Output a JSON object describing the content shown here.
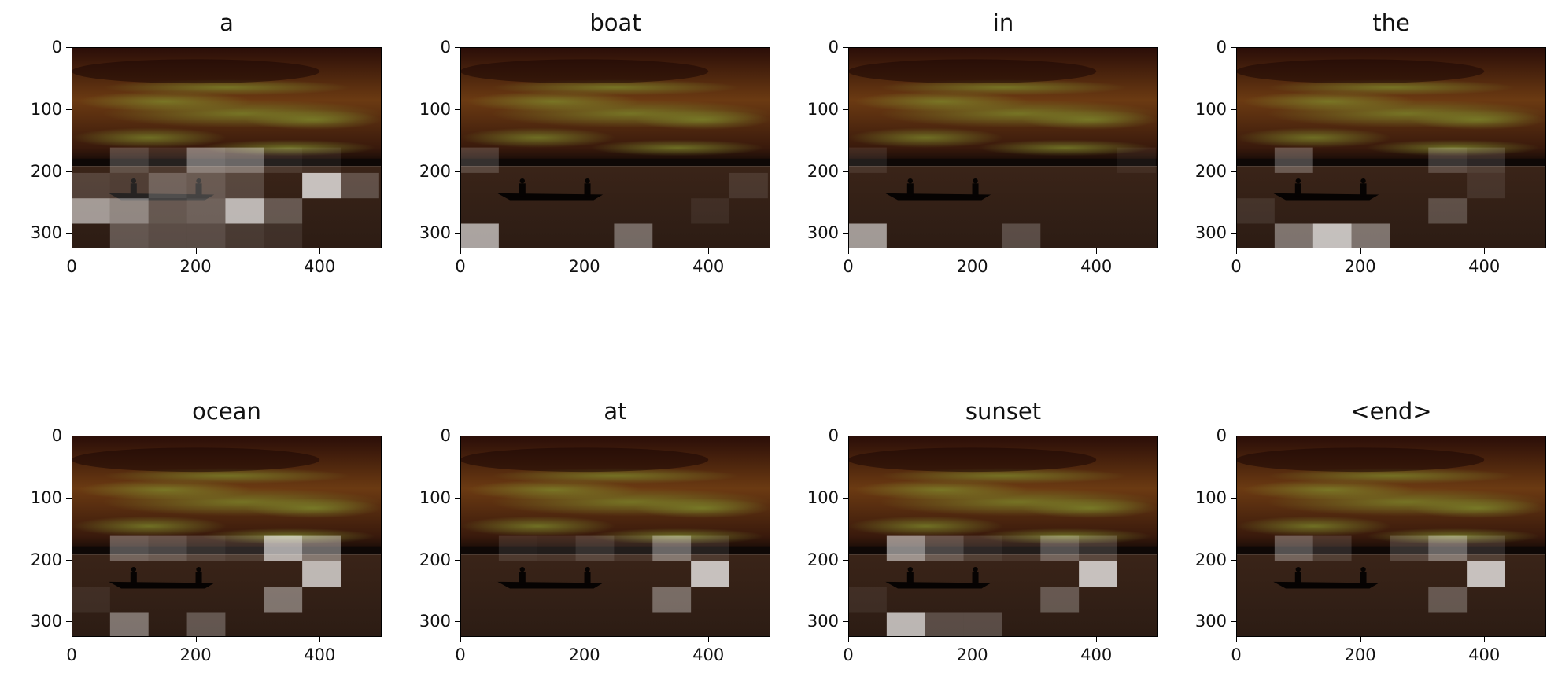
{
  "figure": {
    "colors": {
      "sky_top": "#2a0d08",
      "sky_glow": "#6b3a12",
      "cloud_green": "#7e8a2c",
      "water": "#2c1c14",
      "horizon": "#0e0806",
      "attention": "#ffffff"
    }
  },
  "chart_data": [
    {
      "type": "heatmap",
      "title": "a",
      "image_extent": {
        "x": [
          0,
          500
        ],
        "y": [
          325,
          0
        ]
      },
      "xticks": [
        "0",
        "200",
        "400"
      ],
      "yticks": [
        "0",
        "100",
        "200",
        "300"
      ],
      "attention_cells": [
        {
          "x": [
            62,
            124
          ],
          "y": [
            162,
            203
          ],
          "w": 0.25
        },
        {
          "x": [
            124,
            186
          ],
          "y": [
            162,
            203
          ],
          "w": 0.12
        },
        {
          "x": [
            186,
            248
          ],
          "y": [
            162,
            203
          ],
          "w": 0.5
        },
        {
          "x": [
            248,
            310
          ],
          "y": [
            162,
            203
          ],
          "w": 0.45
        },
        {
          "x": [
            310,
            372
          ],
          "y": [
            162,
            203
          ],
          "w": 0.12
        },
        {
          "x": [
            372,
            434
          ],
          "y": [
            162,
            203
          ],
          "w": 0.08
        },
        {
          "x": [
            0,
            62
          ],
          "y": [
            203,
            244
          ],
          "w": 0.18
        },
        {
          "x": [
            62,
            124
          ],
          "y": [
            203,
            244
          ],
          "w": 0.15
        },
        {
          "x": [
            124,
            186
          ],
          "y": [
            203,
            244
          ],
          "w": 0.35
        },
        {
          "x": [
            186,
            248
          ],
          "y": [
            203,
            244
          ],
          "w": 0.3
        },
        {
          "x": [
            248,
            310
          ],
          "y": [
            203,
            244
          ],
          "w": 0.2
        },
        {
          "x": [
            372,
            434
          ],
          "y": [
            203,
            244
          ],
          "w": 0.85
        },
        {
          "x": [
            434,
            496
          ],
          "y": [
            203,
            244
          ],
          "w": 0.25
        },
        {
          "x": [
            0,
            62
          ],
          "y": [
            244,
            285
          ],
          "w": 0.65
        },
        {
          "x": [
            62,
            124
          ],
          "y": [
            244,
            285
          ],
          "w": 0.55
        },
        {
          "x": [
            124,
            186
          ],
          "y": [
            244,
            285
          ],
          "w": 0.3
        },
        {
          "x": [
            186,
            248
          ],
          "y": [
            244,
            285
          ],
          "w": 0.35
        },
        {
          "x": [
            248,
            310
          ],
          "y": [
            244,
            285
          ],
          "w": 0.8
        },
        {
          "x": [
            310,
            372
          ],
          "y": [
            244,
            285
          ],
          "w": 0.3
        },
        {
          "x": [
            62,
            124
          ],
          "y": [
            285,
            325
          ],
          "w": 0.3
        },
        {
          "x": [
            124,
            186
          ],
          "y": [
            285,
            325
          ],
          "w": 0.25
        },
        {
          "x": [
            186,
            248
          ],
          "y": [
            285,
            325
          ],
          "w": 0.25
        },
        {
          "x": [
            248,
            310
          ],
          "y": [
            285,
            325
          ],
          "w": 0.15
        },
        {
          "x": [
            310,
            372
          ],
          "y": [
            285,
            325
          ],
          "w": 0.1
        }
      ]
    },
    {
      "type": "heatmap",
      "title": "boat",
      "image_extent": {
        "x": [
          0,
          500
        ],
        "y": [
          325,
          0
        ]
      },
      "xticks": [
        "0",
        "200",
        "400"
      ],
      "yticks": [
        "0",
        "100",
        "200",
        "300"
      ],
      "attention_cells": [
        {
          "x": [
            0,
            62
          ],
          "y": [
            162,
            203
          ],
          "w": 0.2
        },
        {
          "x": [
            434,
            496
          ],
          "y": [
            203,
            244
          ],
          "w": 0.12
        },
        {
          "x": [
            372,
            434
          ],
          "y": [
            244,
            285
          ],
          "w": 0.08
        },
        {
          "x": [
            0,
            62
          ],
          "y": [
            285,
            325
          ],
          "w": 0.7
        },
        {
          "x": [
            248,
            310
          ],
          "y": [
            285,
            325
          ],
          "w": 0.4
        }
      ]
    },
    {
      "type": "heatmap",
      "title": "in",
      "image_extent": {
        "x": [
          0,
          500
        ],
        "y": [
          325,
          0
        ]
      },
      "xticks": [
        "0",
        "200",
        "400"
      ],
      "yticks": [
        "0",
        "100",
        "200",
        "300"
      ],
      "attention_cells": [
        {
          "x": [
            0,
            62
          ],
          "y": [
            162,
            203
          ],
          "w": 0.1
        },
        {
          "x": [
            434,
            496
          ],
          "y": [
            162,
            203
          ],
          "w": 0.06
        },
        {
          "x": [
            0,
            62
          ],
          "y": [
            285,
            325
          ],
          "w": 0.65
        },
        {
          "x": [
            248,
            310
          ],
          "y": [
            285,
            325
          ],
          "w": 0.25
        }
      ]
    },
    {
      "type": "heatmap",
      "title": "the",
      "image_extent": {
        "x": [
          0,
          500
        ],
        "y": [
          325,
          0
        ]
      },
      "xticks": [
        "0",
        "200",
        "400"
      ],
      "yticks": [
        "0",
        "100",
        "200",
        "300"
      ],
      "attention_cells": [
        {
          "x": [
            62,
            124
          ],
          "y": [
            162,
            203
          ],
          "w": 0.3
        },
        {
          "x": [
            310,
            372
          ],
          "y": [
            162,
            203
          ],
          "w": 0.22
        },
        {
          "x": [
            372,
            434
          ],
          "y": [
            162,
            203
          ],
          "w": 0.15
        },
        {
          "x": [
            372,
            434
          ],
          "y": [
            203,
            244
          ],
          "w": 0.1
        },
        {
          "x": [
            0,
            62
          ],
          "y": [
            244,
            285
          ],
          "w": 0.1
        },
        {
          "x": [
            310,
            372
          ],
          "y": [
            244,
            285
          ],
          "w": 0.25
        },
        {
          "x": [
            62,
            124
          ],
          "y": [
            285,
            325
          ],
          "w": 0.45
        },
        {
          "x": [
            124,
            186
          ],
          "y": [
            285,
            325
          ],
          "w": 0.85
        },
        {
          "x": [
            186,
            248
          ],
          "y": [
            285,
            325
          ],
          "w": 0.45
        }
      ]
    },
    {
      "type": "heatmap",
      "title": "ocean",
      "image_extent": {
        "x": [
          0,
          500
        ],
        "y": [
          325,
          0
        ]
      },
      "xticks": [
        "0",
        "200",
        "400"
      ],
      "yticks": [
        "0",
        "100",
        "200",
        "300"
      ],
      "attention_cells": [
        {
          "x": [
            62,
            124
          ],
          "y": [
            162,
            203
          ],
          "w": 0.35
        },
        {
          "x": [
            124,
            186
          ],
          "y": [
            162,
            203
          ],
          "w": 0.3
        },
        {
          "x": [
            186,
            248
          ],
          "y": [
            162,
            203
          ],
          "w": 0.2
        },
        {
          "x": [
            248,
            310
          ],
          "y": [
            162,
            203
          ],
          "w": 0.15
        },
        {
          "x": [
            310,
            372
          ],
          "y": [
            162,
            203
          ],
          "w": 0.75
        },
        {
          "x": [
            372,
            434
          ],
          "y": [
            162,
            203
          ],
          "w": 0.45
        },
        {
          "x": [
            372,
            434
          ],
          "y": [
            203,
            244
          ],
          "w": 0.8
        },
        {
          "x": [
            0,
            62
          ],
          "y": [
            244,
            285
          ],
          "w": 0.08
        },
        {
          "x": [
            310,
            372
          ],
          "y": [
            244,
            285
          ],
          "w": 0.45
        },
        {
          "x": [
            62,
            124
          ],
          "y": [
            285,
            325
          ],
          "w": 0.45
        },
        {
          "x": [
            186,
            248
          ],
          "y": [
            285,
            325
          ],
          "w": 0.3
        }
      ]
    },
    {
      "type": "heatmap",
      "title": "at",
      "image_extent": {
        "x": [
          0,
          500
        ],
        "y": [
          325,
          0
        ]
      },
      "xticks": [
        "0",
        "200",
        "400"
      ],
      "yticks": [
        "0",
        "100",
        "200",
        "300"
      ],
      "attention_cells": [
        {
          "x": [
            62,
            124
          ],
          "y": [
            162,
            203
          ],
          "w": 0.12
        },
        {
          "x": [
            124,
            186
          ],
          "y": [
            162,
            203
          ],
          "w": 0.1
        },
        {
          "x": [
            186,
            248
          ],
          "y": [
            162,
            203
          ],
          "w": 0.2
        },
        {
          "x": [
            248,
            310
          ],
          "y": [
            162,
            203
          ],
          "w": 0.1
        },
        {
          "x": [
            310,
            372
          ],
          "y": [
            162,
            203
          ],
          "w": 0.45
        },
        {
          "x": [
            372,
            434
          ],
          "y": [
            162,
            203
          ],
          "w": 0.12
        },
        {
          "x": [
            372,
            434
          ],
          "y": [
            203,
            244
          ],
          "w": 0.85
        },
        {
          "x": [
            310,
            372
          ],
          "y": [
            244,
            285
          ],
          "w": 0.4
        }
      ]
    },
    {
      "type": "heatmap",
      "title": "sunset",
      "image_extent": {
        "x": [
          0,
          500
        ],
        "y": [
          325,
          0
        ]
      },
      "xticks": [
        "0",
        "200",
        "400"
      ],
      "yticks": [
        "0",
        "100",
        "200",
        "300"
      ],
      "attention_cells": [
        {
          "x": [
            62,
            124
          ],
          "y": [
            162,
            203
          ],
          "w": 0.6
        },
        {
          "x": [
            124,
            186
          ],
          "y": [
            162,
            203
          ],
          "w": 0.3
        },
        {
          "x": [
            186,
            248
          ],
          "y": [
            162,
            203
          ],
          "w": 0.15
        },
        {
          "x": [
            248,
            310
          ],
          "y": [
            162,
            203
          ],
          "w": 0.1
        },
        {
          "x": [
            310,
            372
          ],
          "y": [
            162,
            203
          ],
          "w": 0.35
        },
        {
          "x": [
            372,
            434
          ],
          "y": [
            162,
            203
          ],
          "w": 0.2
        },
        {
          "x": [
            372,
            434
          ],
          "y": [
            203,
            244
          ],
          "w": 0.85
        },
        {
          "x": [
            0,
            62
          ],
          "y": [
            244,
            285
          ],
          "w": 0.08
        },
        {
          "x": [
            310,
            372
          ],
          "y": [
            244,
            285
          ],
          "w": 0.3
        },
        {
          "x": [
            62,
            124
          ],
          "y": [
            285,
            325
          ],
          "w": 0.8
        },
        {
          "x": [
            124,
            186
          ],
          "y": [
            285,
            325
          ],
          "w": 0.25
        },
        {
          "x": [
            186,
            248
          ],
          "y": [
            285,
            325
          ],
          "w": 0.25
        }
      ]
    },
    {
      "type": "heatmap",
      "title": "<end>",
      "image_extent": {
        "x": [
          0,
          500
        ],
        "y": [
          325,
          0
        ]
      },
      "xticks": [
        "0",
        "200",
        "400"
      ],
      "yticks": [
        "0",
        "100",
        "200",
        "300"
      ],
      "attention_cells": [
        {
          "x": [
            62,
            124
          ],
          "y": [
            162,
            203
          ],
          "w": 0.35
        },
        {
          "x": [
            124,
            186
          ],
          "y": [
            162,
            203
          ],
          "w": 0.15
        },
        {
          "x": [
            248,
            310
          ],
          "y": [
            162,
            203
          ],
          "w": 0.2
        },
        {
          "x": [
            310,
            372
          ],
          "y": [
            162,
            203
          ],
          "w": 0.45
        },
        {
          "x": [
            372,
            434
          ],
          "y": [
            162,
            203
          ],
          "w": 0.15
        },
        {
          "x": [
            372,
            434
          ],
          "y": [
            203,
            244
          ],
          "w": 0.85
        },
        {
          "x": [
            310,
            372
          ],
          "y": [
            244,
            285
          ],
          "w": 0.3
        }
      ]
    }
  ]
}
